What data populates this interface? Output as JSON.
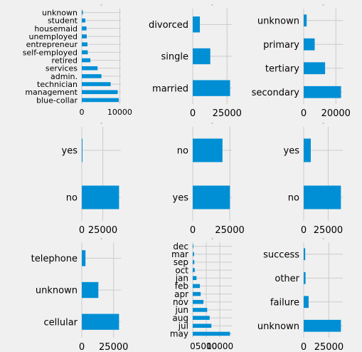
{
  "style": {
    "background": "#f0f0f0",
    "panel_background": "#f0f0f0",
    "grid_color": "#cbcbcb",
    "bar_color": "#008fd5"
  },
  "chart_data": [
    {
      "type": "bar",
      "orientation": "horizontal",
      "title": "",
      "categories": [
        "blue-collar",
        "management",
        "technician",
        "admin.",
        "services",
        "retired",
        "self-employed",
        "entrepreneur",
        "unemployed",
        "housemaid",
        "student",
        "unknown"
      ],
      "values": [
        9732,
        9458,
        7597,
        5171,
        4154,
        2264,
        1579,
        1487,
        1303,
        1240,
        938,
        288
      ],
      "xlim": [
        0,
        10300
      ],
      "xticks": [
        0,
        10000
      ],
      "xtick_labels": [
        "0",
        "10000"
      ],
      "grid": true
    },
    {
      "type": "bar",
      "orientation": "horizontal",
      "title": "",
      "categories": [
        "married",
        "single",
        "divorced"
      ],
      "values": [
        27214,
        12790,
        5207
      ],
      "xlim": [
        0,
        28500
      ],
      "xticks": [
        0,
        25000
      ],
      "xtick_labels": [
        "0",
        "25000"
      ],
      "grid": true
    },
    {
      "type": "bar",
      "orientation": "horizontal",
      "title": "",
      "categories": [
        "secondary",
        "tertiary",
        "primary",
        "unknown"
      ],
      "values": [
        23202,
        13301,
        6851,
        1857
      ],
      "xlim": [
        0,
        24300
      ],
      "xticks": [
        0,
        20000
      ],
      "xtick_labels": [
        "0",
        "20000"
      ],
      "grid": true
    },
    {
      "type": "bar",
      "orientation": "horizontal",
      "title": "",
      "categories": [
        "no",
        "yes"
      ],
      "values": [
        44396,
        815
      ],
      "xlim": [
        0,
        46600
      ],
      "xticks": [
        0,
        25000
      ],
      "xtick_labels": [
        "0",
        "25000"
      ],
      "grid": true
    },
    {
      "type": "bar",
      "orientation": "horizontal",
      "title": "",
      "categories": [
        "yes",
        "no"
      ],
      "values": [
        25130,
        20081
      ],
      "xlim": [
        0,
        26400
      ],
      "xticks": [
        0,
        25000
      ],
      "xtick_labels": [
        "0",
        "25000"
      ],
      "grid": true
    },
    {
      "type": "bar",
      "orientation": "horizontal",
      "title": "",
      "categories": [
        "no",
        "yes"
      ],
      "values": [
        37967,
        7244
      ],
      "xlim": [
        0,
        39900
      ],
      "xticks": [
        0,
        25000
      ],
      "xtick_labels": [
        "0",
        "25000"
      ],
      "grid": true
    },
    {
      "type": "bar",
      "orientation": "horizontal",
      "title": "",
      "categories": [
        "cellular",
        "unknown",
        "telephone"
      ],
      "values": [
        29285,
        13020,
        2906
      ],
      "xlim": [
        0,
        30750
      ],
      "xticks": [
        0,
        25000
      ],
      "xtick_labels": [
        "0",
        "25000"
      ],
      "grid": true
    },
    {
      "type": "bar",
      "orientation": "horizontal",
      "title": "",
      "categories": [
        "may",
        "jul",
        "aug",
        "jun",
        "nov",
        "apr",
        "feb",
        "jan",
        "oct",
        "sep",
        "mar",
        "dec"
      ],
      "values": [
        13766,
        6895,
        6247,
        5341,
        3970,
        2932,
        2649,
        1403,
        738,
        579,
        477,
        214
      ],
      "xlim": [
        0,
        14450
      ],
      "xticks": [
        0,
        5000,
        10000
      ],
      "xtick_labels": [
        "0",
        "5000",
        "10000"
      ],
      "grid": true
    },
    {
      "type": "bar",
      "orientation": "horizontal",
      "title": "",
      "categories": [
        "unknown",
        "failure",
        "other",
        "success"
      ],
      "values": [
        36959,
        4901,
        1840,
        1511
      ],
      "xlim": [
        0,
        38800
      ],
      "xticks": [
        0,
        25000
      ],
      "xtick_labels": [
        "0",
        "25000"
      ],
      "grid": true
    }
  ]
}
